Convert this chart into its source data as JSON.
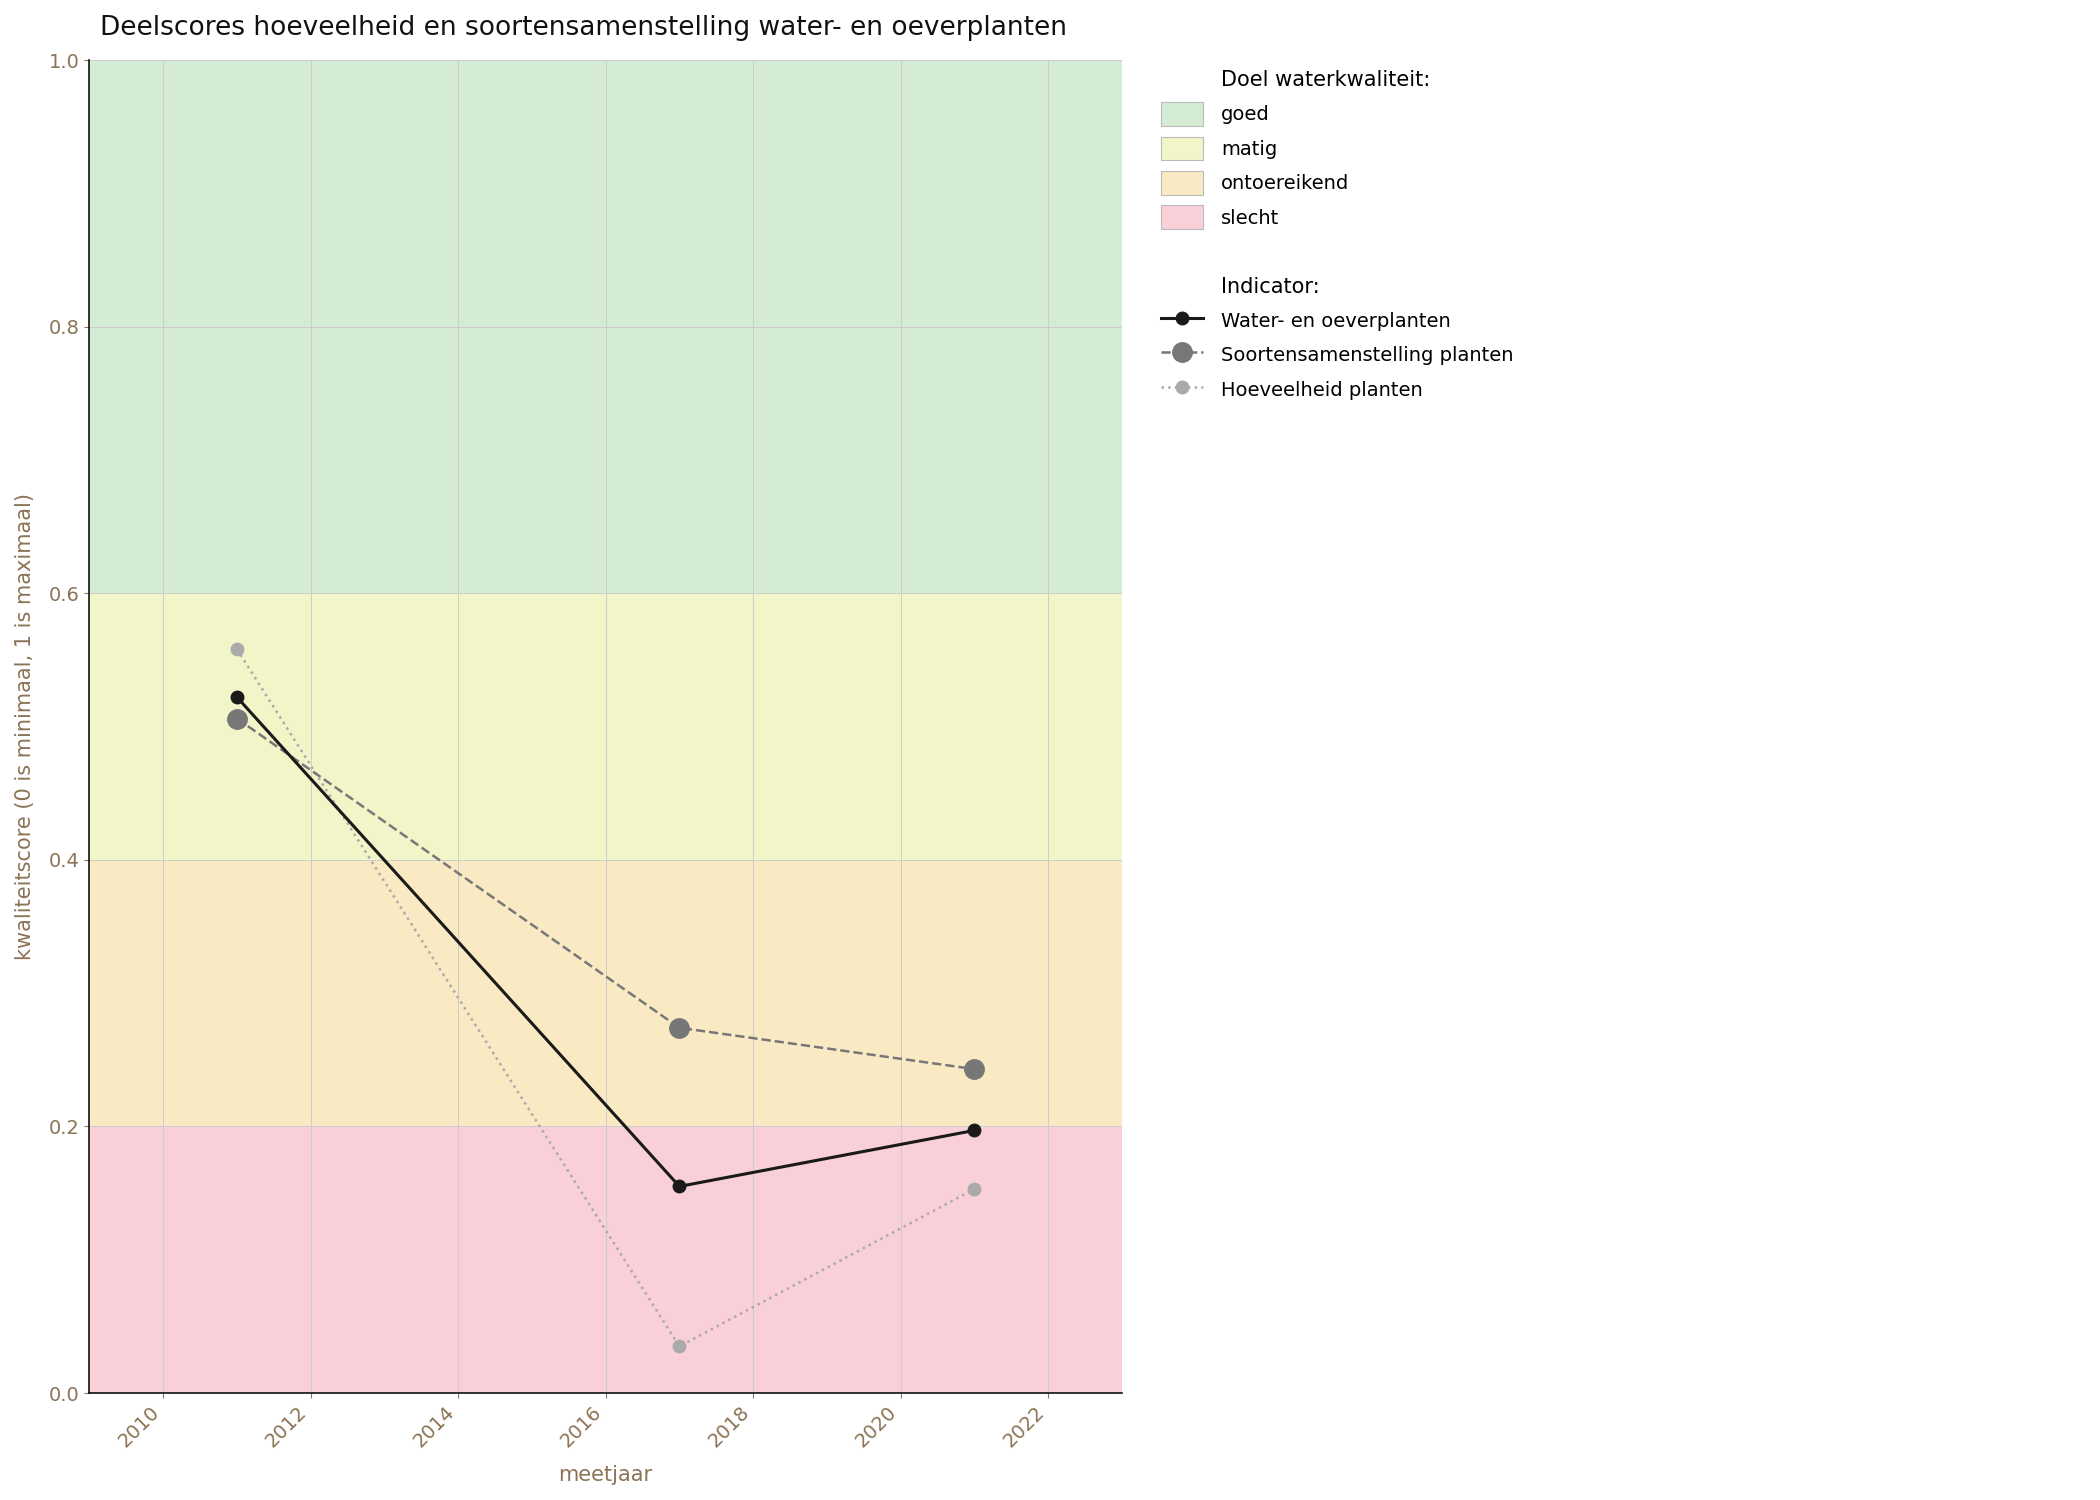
{
  "title": "Deelscores hoeveelheid en soortensamenstelling water- en oeverplanten",
  "xlabel": "meetjaar",
  "ylabel": "kwaliteitscore (0 is minimaal, 1 is maximaal)",
  "xlim": [
    2009.0,
    2023.0
  ],
  "ylim": [
    0.0,
    1.0
  ],
  "xticks": [
    2010,
    2012,
    2014,
    2016,
    2018,
    2020,
    2022
  ],
  "yticks": [
    0.0,
    0.2,
    0.4,
    0.6,
    0.8,
    1.0
  ],
  "bg_bands": [
    {
      "ymin": 0.6,
      "ymax": 1.0,
      "color": "#d5ecd4",
      "label": "goed"
    },
    {
      "ymin": 0.4,
      "ymax": 0.6,
      "color": "#f2f5c8",
      "label": "matig"
    },
    {
      "ymin": 0.2,
      "ymax": 0.4,
      "color": "#faeac4",
      "label": "ontoereikend"
    },
    {
      "ymin": 0.0,
      "ymax": 0.2,
      "color": "#f9d0d8",
      "label": "slecht"
    }
  ],
  "series": {
    "water_oever": {
      "label": "Water- en oeverplanten",
      "x": [
        2011,
        2017,
        2021
      ],
      "y": [
        0.522,
        0.155,
        0.197
      ],
      "color": "#1a1a1a",
      "linestyle": "solid",
      "linewidth": 2.2,
      "markersize": 9,
      "zorder": 5
    },
    "soortensamenstelling": {
      "label": "Soortensamenstelling planten",
      "x": [
        2011,
        2017,
        2021
      ],
      "y": [
        0.506,
        0.274,
        0.243
      ],
      "color": "#777777",
      "linestyle": "dashed",
      "linewidth": 1.8,
      "markersize": 14,
      "zorder": 4
    },
    "hoeveelheid": {
      "label": "Hoeveelheid planten",
      "x": [
        2011,
        2017,
        2021
      ],
      "y": [
        0.558,
        0.035,
        0.153
      ],
      "color": "#aaaaaa",
      "linestyle": "dotted",
      "linewidth": 1.8,
      "markersize": 9,
      "zorder": 3
    }
  },
  "legend_quality_title": "Doel waterkwaliteit:",
  "legend_indicator_title": "Indicator:",
  "grid_color": "#cccccc",
  "grid_linewidth": 0.7,
  "tick_color": "#8B7355",
  "axis_color": "#111111",
  "background_color": "#ffffff",
  "title_fontsize": 19,
  "label_fontsize": 15,
  "tick_fontsize": 14,
  "legend_fontsize": 14,
  "legend_title_fontsize": 15
}
